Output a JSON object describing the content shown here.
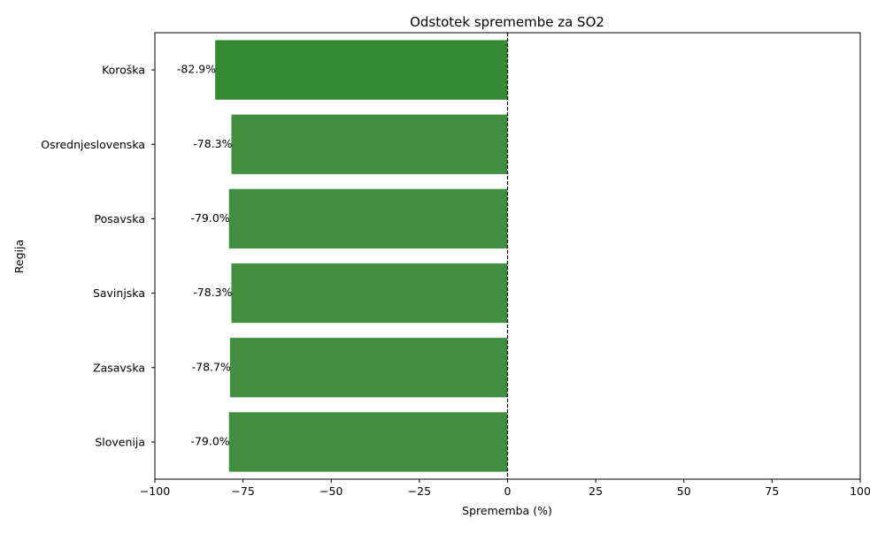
{
  "chart_data": {
    "type": "bar",
    "orientation": "horizontal",
    "title": "Odstotek spremembe za SO2",
    "xlabel": "Sprememba (%)",
    "ylabel": "Regija",
    "xlim": [
      -100,
      100
    ],
    "xticks": [
      -100,
      -75,
      -50,
      -25,
      0,
      25,
      50,
      75,
      100
    ],
    "xtick_labels": [
      "−100",
      "−75",
      "−50",
      "−25",
      "0",
      "25",
      "50",
      "75",
      "100"
    ],
    "categories": [
      "Koroška",
      "Osrednjeslovenska",
      "Posavska",
      "Savinjska",
      "Zasavska",
      "Slovenija"
    ],
    "values": [
      -82.9,
      -78.3,
      -79.0,
      -78.3,
      -78.7,
      -79.0
    ],
    "data_labels": [
      "-82.9%",
      "-78.3%",
      "-79.0%",
      "-78.3%",
      "-78.7%",
      "-79.0%"
    ],
    "bar_colors": [
      "#338a33",
      "#428f42",
      "#428f42",
      "#428f42",
      "#428f42",
      "#428f42"
    ],
    "reference_line": {
      "x": 0,
      "style": "dashed"
    },
    "grid": false,
    "legend": "none"
  }
}
